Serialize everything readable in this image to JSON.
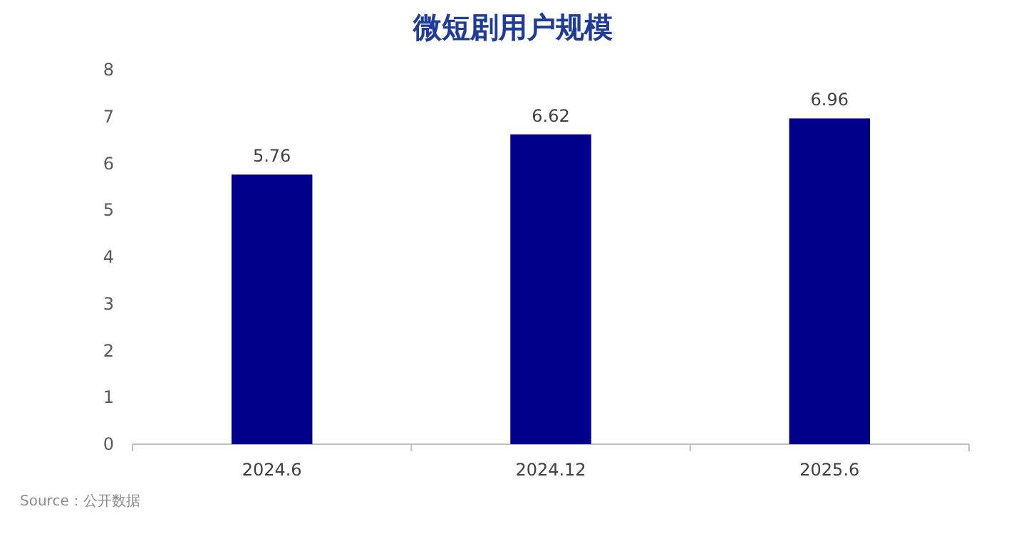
{
  "chart_data": {
    "type": "bar",
    "title": "微短剧用户规模",
    "categories": [
      "2024.6",
      "2024.12",
      "2025.6"
    ],
    "values": [
      5.76,
      6.62,
      6.96
    ],
    "color": "#00008b",
    "ylim": [
      0,
      8
    ],
    "yticks": [
      0,
      1,
      2,
      3,
      4,
      5,
      6,
      7,
      8
    ],
    "data_labels": true,
    "annotations": [
      "Source：公开数据"
    ]
  }
}
